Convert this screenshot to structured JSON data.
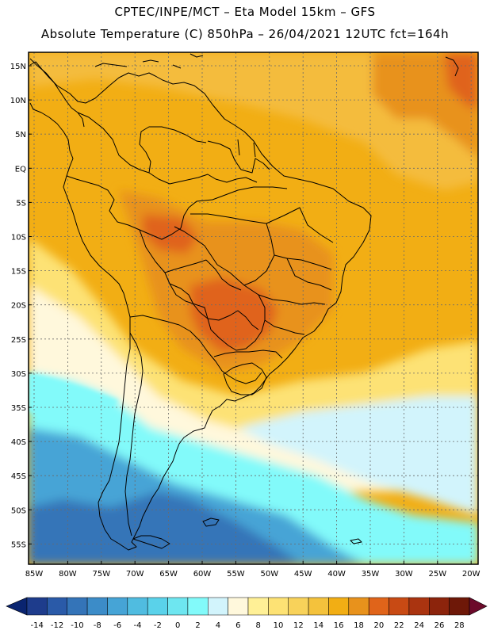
{
  "header": {
    "line1": "CPTEC/INPE/MCT –   Eta Model 15km – GFS",
    "line2": "Absolute Temperature (C) 850hPa – 26/04/2021 12UTC fct=164h"
  },
  "axes": {
    "lat_labels": [
      "15N",
      "10N",
      "5N",
      "EQ",
      "5S",
      "10S",
      "15S",
      "20S",
      "25S",
      "30S",
      "35S",
      "40S",
      "45S",
      "50S",
      "55S"
    ],
    "lon_labels": [
      "85W",
      "80W",
      "75W",
      "70W",
      "65W",
      "60W",
      "55W",
      "50W",
      "45W",
      "40W",
      "35W",
      "30W",
      "25W",
      "20W"
    ]
  },
  "colorbar": {
    "labels": [
      "-14",
      "-12",
      "-10",
      "-8",
      "-6",
      "-4",
      "-2",
      "0",
      "2",
      "4",
      "6",
      "8",
      "10",
      "12",
      "14",
      "16",
      "18",
      "20",
      "22",
      "24",
      "26",
      "28"
    ],
    "colors": [
      "#1e3c8c",
      "#2a5aa8",
      "#3474b8",
      "#3c8cc8",
      "#46a4d6",
      "#50bce0",
      "#5ad2ea",
      "#6ee6f0",
      "#82fafa",
      "#d2f4fc",
      "#fff8dc",
      "#fff096",
      "#fde274",
      "#f8d25a",
      "#f4c23c",
      "#f2ae14",
      "#e8921c",
      "#e0641a",
      "#c84a14",
      "#aa3410",
      "#8c240c",
      "#6e1808"
    ],
    "under_color": "#0a2470",
    "over_color": "#6c0a2a"
  },
  "map": {
    "ocean_north": "#f4bc3c",
    "ocean_warm": "#f2ae14",
    "ocean_northeast": "#e8921c",
    "hot_core": "#e0641a",
    "warm_land": "#e8921c",
    "mid_south": "#fde274",
    "cool_band": "#fff8dc",
    "cyan_band": "#82fafa",
    "light_cyan": "#d2f4fc",
    "blue_mid": "#46a4d6",
    "blue_deep": "#3474b8",
    "border_color": "#000000"
  }
}
